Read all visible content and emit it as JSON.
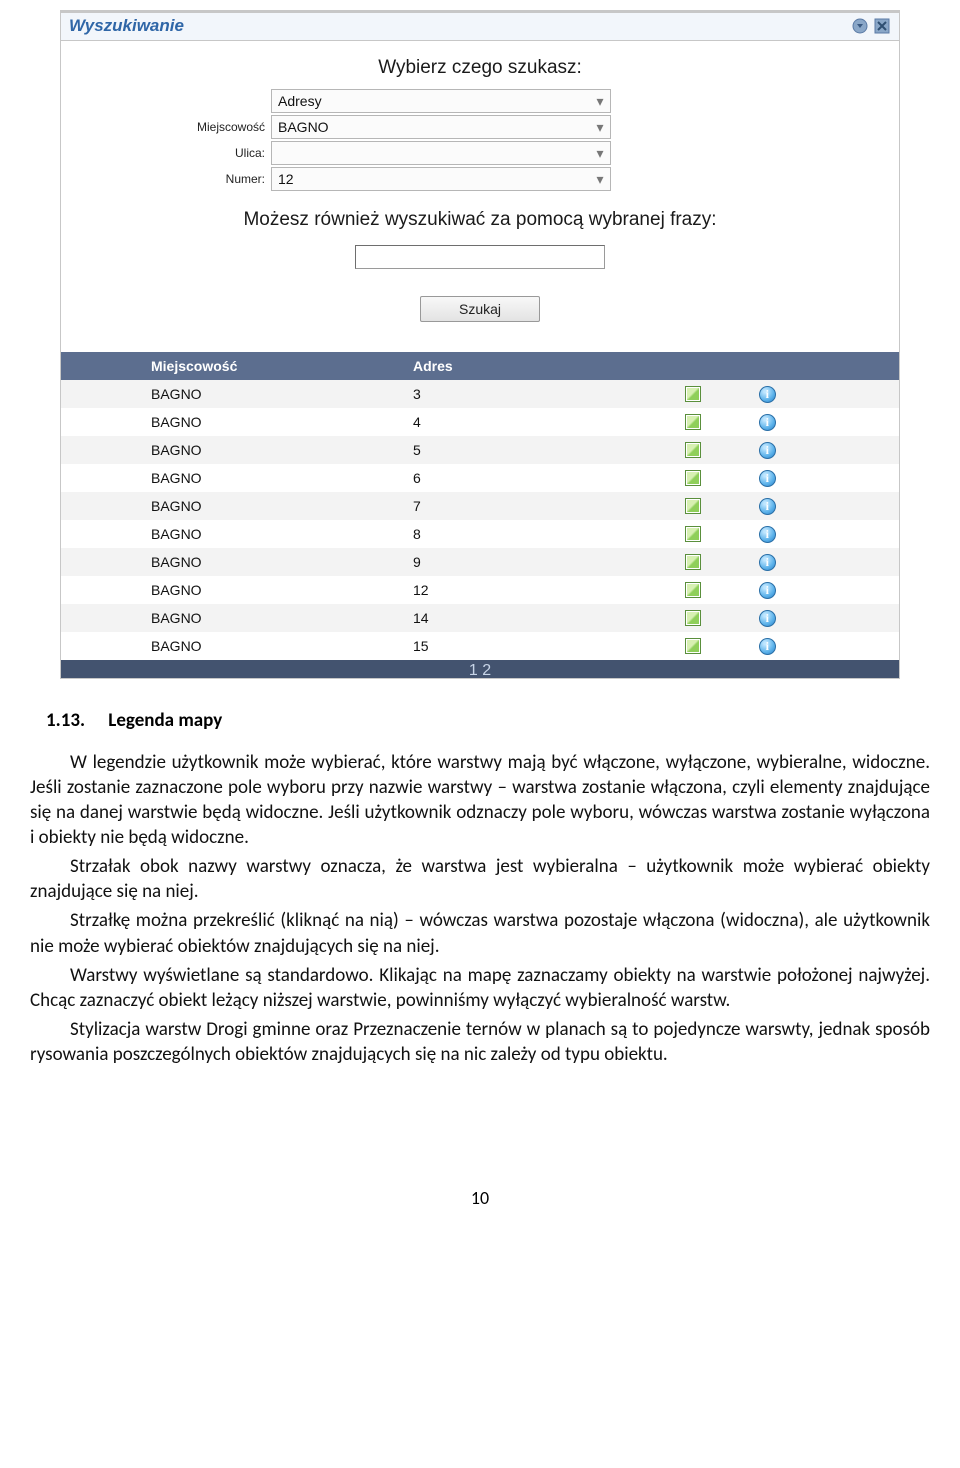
{
  "panel": {
    "title": "Wyszukiwanie",
    "heading1": "Wybierz czego szukasz:",
    "heading2": "Możesz również wyszukiwać za pomocą wybranej frazy:",
    "fields": {
      "category_label": "",
      "category_value": "Adresy",
      "miejscowosc_label": "Miejscowość",
      "miejscowosc_value": "BAGNO",
      "ulica_label": "Ulica:",
      "ulica_value": "",
      "numer_label": "Numer:",
      "numer_value": "12"
    },
    "search_button": "Szukaj",
    "columns": {
      "loc": "Miejscowość",
      "adr": "Adres"
    },
    "rows": [
      {
        "loc": "BAGNO",
        "adr": "3"
      },
      {
        "loc": "BAGNO",
        "adr": "4"
      },
      {
        "loc": "BAGNO",
        "adr": "5"
      },
      {
        "loc": "BAGNO",
        "adr": "6"
      },
      {
        "loc": "BAGNO",
        "adr": "7"
      },
      {
        "loc": "BAGNO",
        "adr": "8"
      },
      {
        "loc": "BAGNO",
        "adr": "9"
      },
      {
        "loc": "BAGNO",
        "adr": "12"
      },
      {
        "loc": "BAGNO",
        "adr": "14"
      },
      {
        "loc": "BAGNO",
        "adr": "15"
      }
    ],
    "pager": "1 2"
  },
  "doc": {
    "section_num": "1.13.",
    "section_title": "Legenda mapy",
    "p1": "W legendzie użytkownik może wybierać, które warstwy mają być włączone, wyłączone, wybieralne, widoczne. Jeśli zostanie zaznaczone pole wyboru przy nazwie warstwy – warstwa zostanie włączona, czyli elementy znajdujące się na danej warstwie będą widoczne. Jeśli użytkownik odznaczy pole wyboru, wówczas warstwa zostanie wyłączona i obiekty nie będą widoczne.",
    "p2": "Strzałak obok nazwy warstwy oznacza, że warstwa jest wybieralna – użytkownik może wybierać obiekty znajdujące się na niej.",
    "p3": "Strzałkę można przekreślić (kliknąć na nią) – wówczas warstwa pozostaje włączona (widoczna), ale użytkownik nie może wybierać obiektów znajdujących się na niej.",
    "p4": "Warstwy wyświetlane są standardowo. Klikając na mapę zaznaczamy obiekty na warstwie położonej najwyżej. Chcąc zaznaczyć  obiekt leżący niższej warstwie, powinniśmy wyłączyć wybieralność warstw.",
    "p5": "Stylizacja warstw Drogi gminne oraz Przeznaczenie ternów w planach są to pojedyncze warswty, jednak sposób rysowania poszczególnych obiektów znajdujących się na nic zależy od typu obiektu.",
    "page_number": "10"
  },
  "info_glyph": "i"
}
